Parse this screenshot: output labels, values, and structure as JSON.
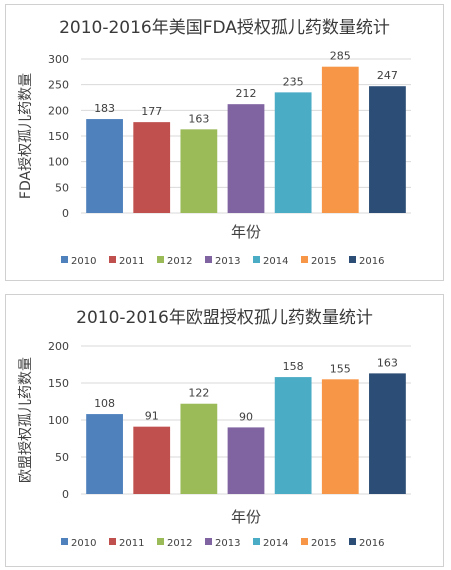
{
  "chart_data": [
    {
      "type": "bar",
      "title": "2010-2016年美国FDA授权孤儿药数量统计",
      "xlabel": "年份",
      "ylabel": "FDA授权孤儿药数量",
      "ylim": [
        0,
        300
      ],
      "yticks": [
        0,
        50,
        100,
        150,
        200,
        250,
        300
      ],
      "grid": true,
      "legend_position": "bottom",
      "categories": [
        "2010",
        "2011",
        "2012",
        "2013",
        "2014",
        "2015",
        "2016"
      ],
      "values": [
        183,
        177,
        163,
        212,
        235,
        285,
        247
      ],
      "data_labels": [
        "183",
        "177",
        "163",
        "212",
        "235",
        "285",
        "247"
      ],
      "colors": [
        "#4f81bd",
        "#c0504d",
        "#9bbb59",
        "#8064a2",
        "#4bacc6",
        "#f79646",
        "#2c4d75"
      ]
    },
    {
      "type": "bar",
      "title": "2010-2016年欧盟授权孤儿药数量统计",
      "xlabel": "年份",
      "ylabel": "欧盟授权孤儿药数量",
      "ylim": [
        0,
        200
      ],
      "yticks": [
        0,
        50,
        100,
        150,
        200
      ],
      "grid": true,
      "legend_position": "bottom",
      "categories": [
        "2010",
        "2011",
        "2012",
        "2013",
        "2014",
        "2015",
        "2016"
      ],
      "values": [
        108,
        91,
        122,
        90,
        158,
        155,
        163
      ],
      "data_labels": [
        "108",
        "91",
        "122",
        "90",
        "158",
        "155",
        "163"
      ],
      "colors": [
        "#4f81bd",
        "#c0504d",
        "#9bbb59",
        "#8064a2",
        "#4bacc6",
        "#f79646",
        "#2c4d75"
      ]
    }
  ]
}
